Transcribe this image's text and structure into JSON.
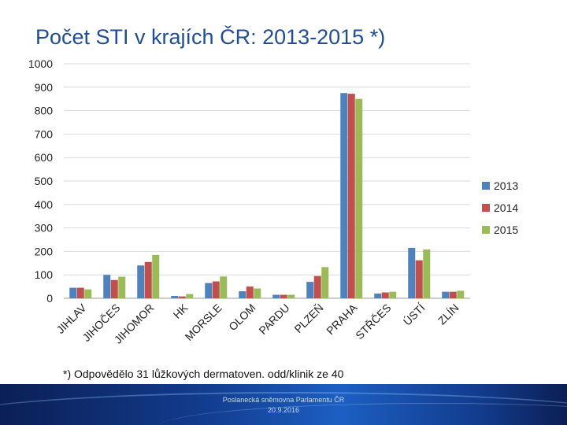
{
  "slide": {
    "title": "Počet STI v krajích ČR: 2013-2015 *)",
    "footnote": "*) Odpovědělo 31 lůžkových dermatoven. odd/klinik ze 40",
    "footer_org": "Poslanecká sněmovna Parlamentu ČR",
    "footer_date": "20.9.2016"
  },
  "chart_data": {
    "type": "bar",
    "title": "",
    "xlabel": "",
    "ylabel": "",
    "ylim": [
      0,
      1000
    ],
    "yticks": [
      0,
      100,
      200,
      300,
      400,
      500,
      600,
      700,
      800,
      900,
      1000
    ],
    "grid": true,
    "legend_position": "right",
    "categories": [
      "JIHLAV",
      "JIHOČES",
      "JIHOMOR",
      "HK",
      "MORSLE",
      "OLOM",
      "PARDU",
      "PLZEŇ",
      "PRAHA",
      "STŘČES",
      "ÚSTÍ",
      "ZLÍN"
    ],
    "series": [
      {
        "name": "2013",
        "color": "#4f81bd",
        "values": [
          45,
          100,
          140,
          10,
          65,
          30,
          15,
          70,
          875,
          20,
          215,
          28
        ]
      },
      {
        "name": "2014",
        "color": "#c0504d",
        "values": [
          45,
          78,
          155,
          8,
          72,
          50,
          15,
          95,
          872,
          25,
          162,
          28
        ]
      },
      {
        "name": "2015",
        "color": "#9bbb59",
        "values": [
          38,
          92,
          185,
          18,
          93,
          42,
          15,
          133,
          850,
          28,
          208,
          32
        ]
      }
    ]
  }
}
